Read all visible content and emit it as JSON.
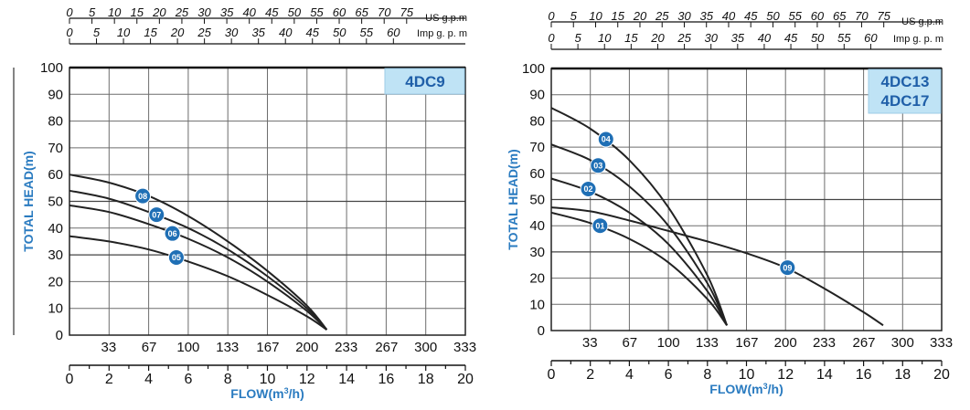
{
  "chart_data": [
    {
      "type": "line",
      "model_labels": [
        "4DC9"
      ],
      "ylabel": "TOTAL HEAD(m)",
      "xlabel": "FLOW(m³/h)",
      "xlabel_main": "FLOW",
      "xlabel_unit_pre": "(m",
      "xlabel_unit_sup": "3",
      "xlabel_unit_post": "/h)",
      "xlim": [
        0,
        20
      ],
      "ylim": [
        0,
        100
      ],
      "x_ticks": [
        "0",
        "2",
        "4",
        "6",
        "8",
        "10",
        "12",
        "14",
        "16",
        "18",
        "20"
      ],
      "y_ticks": [
        "0",
        "10",
        "20",
        "30",
        "40",
        "50",
        "60",
        "70",
        "80",
        "90",
        "100"
      ],
      "lpm_ticks": [
        "33",
        "67",
        "100",
        "133",
        "167",
        "200",
        "233",
        "267",
        "300",
        "333"
      ],
      "usgpm_ticks": [
        "0",
        "5",
        "10",
        "15",
        "20",
        "25",
        "30",
        "35",
        "40",
        "45",
        "50",
        "55",
        "60",
        "65",
        "70",
        "75"
      ],
      "usgpm_unit": "US g.p.m",
      "impgpm_ticks": [
        "0",
        "5",
        "10",
        "15",
        "20",
        "25",
        "30",
        "35",
        "40",
        "45",
        "50",
        "55",
        "60"
      ],
      "impgpm_unit": "Imp g. p. m",
      "series": [
        {
          "name": "08",
          "x": [
            0,
            2,
            4,
            6,
            8,
            10,
            12,
            13
          ],
          "y": [
            60,
            57,
            52,
            44.5,
            35,
            24,
            11,
            2
          ]
        },
        {
          "name": "07",
          "x": [
            0,
            2,
            4,
            6,
            8,
            10,
            12,
            13
          ],
          "y": [
            54,
            51,
            46,
            40,
            32,
            22,
            10,
            2
          ]
        },
        {
          "name": "06",
          "x": [
            0,
            2,
            4,
            6,
            8,
            10,
            12,
            13
          ],
          "y": [
            48.5,
            46,
            41.5,
            36,
            29,
            20,
            9,
            2
          ]
        },
        {
          "name": "05",
          "x": [
            0,
            2,
            4,
            6,
            8,
            10,
            12,
            13
          ],
          "y": [
            37,
            35,
            32,
            27.5,
            22,
            15,
            7,
            2
          ]
        }
      ],
      "badges": [
        {
          "label": "08",
          "x": 3.7,
          "y": 52
        },
        {
          "label": "07",
          "x": 4.4,
          "y": 45
        },
        {
          "label": "06",
          "x": 5.2,
          "y": 38
        },
        {
          "label": "05",
          "x": 5.4,
          "y": 29
        }
      ]
    },
    {
      "type": "line",
      "model_labels": [
        "4DC13",
        "4DC17"
      ],
      "ylabel": "TOTAL HEAD(m)",
      "xlabel": "FLOW(m³/h)",
      "xlabel_main": "FLOW",
      "xlabel_unit_pre": "(m",
      "xlabel_unit_sup": "3",
      "xlabel_unit_post": "/h)",
      "xlim": [
        0,
        20
      ],
      "ylim": [
        0,
        100
      ],
      "x_ticks": [
        "0",
        "2",
        "4",
        "6",
        "8",
        "10",
        "12",
        "14",
        "16",
        "18",
        "20"
      ],
      "y_ticks": [
        "0",
        "10",
        "20",
        "30",
        "40",
        "50",
        "60",
        "70",
        "80",
        "90",
        "100"
      ],
      "lpm_ticks": [
        "33",
        "67",
        "100",
        "133",
        "167",
        "200",
        "233",
        "267",
        "300",
        "333"
      ],
      "usgpm_ticks": [
        "0",
        "5",
        "10",
        "15",
        "20",
        "25",
        "30",
        "35",
        "40",
        "45",
        "50",
        "55",
        "60",
        "65",
        "70",
        "75"
      ],
      "usgpm_unit": "US g.p.m",
      "impgpm_ticks": [
        "0",
        "5",
        "10",
        "15",
        "20",
        "25",
        "30",
        "35",
        "40",
        "45",
        "50",
        "55",
        "60"
      ],
      "impgpm_unit": "Imp g. p. m",
      "series": [
        {
          "name": "04",
          "x": [
            0,
            2,
            4,
            6,
            8,
            9
          ],
          "y": [
            85,
            77,
            65,
            47,
            21,
            2
          ]
        },
        {
          "name": "03",
          "x": [
            0,
            2,
            4,
            6,
            8,
            9
          ],
          "y": [
            71,
            65,
            55,
            40,
            18,
            2
          ]
        },
        {
          "name": "02",
          "x": [
            0,
            2,
            4,
            6,
            8,
            9
          ],
          "y": [
            58,
            53,
            45,
            33,
            15,
            2
          ]
        },
        {
          "name": "01",
          "x": [
            0,
            2,
            4,
            6,
            8,
            9
          ],
          "y": [
            45,
            41,
            35,
            26,
            12,
            2
          ]
        },
        {
          "name": "09",
          "x": [
            0,
            2,
            4,
            6,
            8,
            10,
            12,
            14,
            16,
            17
          ],
          "y": [
            47,
            45.5,
            42,
            38,
            34,
            29.5,
            24,
            16,
            7,
            2
          ]
        }
      ],
      "badges": [
        {
          "label": "04",
          "x": 2.8,
          "y": 73
        },
        {
          "label": "03",
          "x": 2.4,
          "y": 63
        },
        {
          "label": "02",
          "x": 1.9,
          "y": 54
        },
        {
          "label": "01",
          "x": 2.5,
          "y": 40
        },
        {
          "label": "09",
          "x": 12.1,
          "y": 24
        }
      ]
    }
  ],
  "colors": {
    "badge": "#1f6fb5",
    "model_box": "#bfe3f5",
    "model_text": "#1f5fa8",
    "axis_title": "#2a7bc0",
    "curve": "#222222",
    "grid": "#6d6d6d"
  }
}
